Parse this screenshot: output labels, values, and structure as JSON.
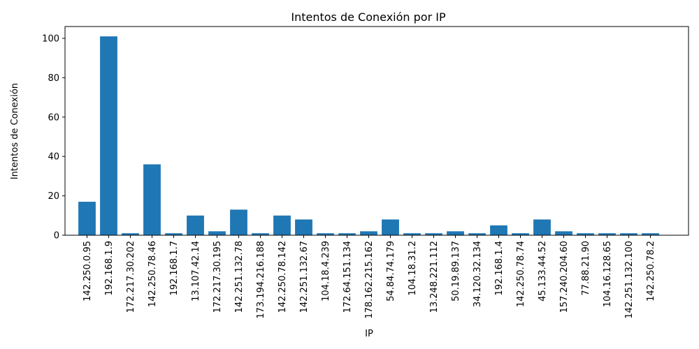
{
  "chart_data": {
    "type": "bar",
    "title": "Intentos de Conexión por IP",
    "xlabel": "IP",
    "ylabel": "Intentos de Conexión",
    "ylim": [
      0,
      106
    ],
    "yticks": [
      0,
      20,
      40,
      60,
      80,
      100
    ],
    "grid": false,
    "bar_color": "#1f77b4",
    "categories": [
      "142.250.0.95",
      "192.168.1.9",
      "172.217.30.202",
      "142.250.78.46",
      "192.168.1.7",
      "13.107.42.14",
      "172.217.30.195",
      "142.251.132.78",
      "173.194.216.188",
      "142.250.78.142",
      "142.251.132.67",
      "104.18.4.239",
      "172.64.151.134",
      "178.162.215.162",
      "54.84.74.179",
      "104.18.31.2",
      "13.248.221.112",
      "50.19.89.137",
      "34.120.32.134",
      "192.168.1.4",
      "142.250.78.74",
      "45.133.44.52",
      "157.240.204.60",
      "77.88.21.90",
      "104.16.128.65",
      "142.251.132.100",
      "142.250.78.2"
    ],
    "values": [
      17,
      101,
      1,
      36,
      1,
      10,
      2,
      13,
      1,
      10,
      8,
      1,
      1,
      2,
      8,
      1,
      1,
      2,
      1,
      5,
      1,
      8,
      2,
      1,
      1,
      1,
      1
    ]
  }
}
